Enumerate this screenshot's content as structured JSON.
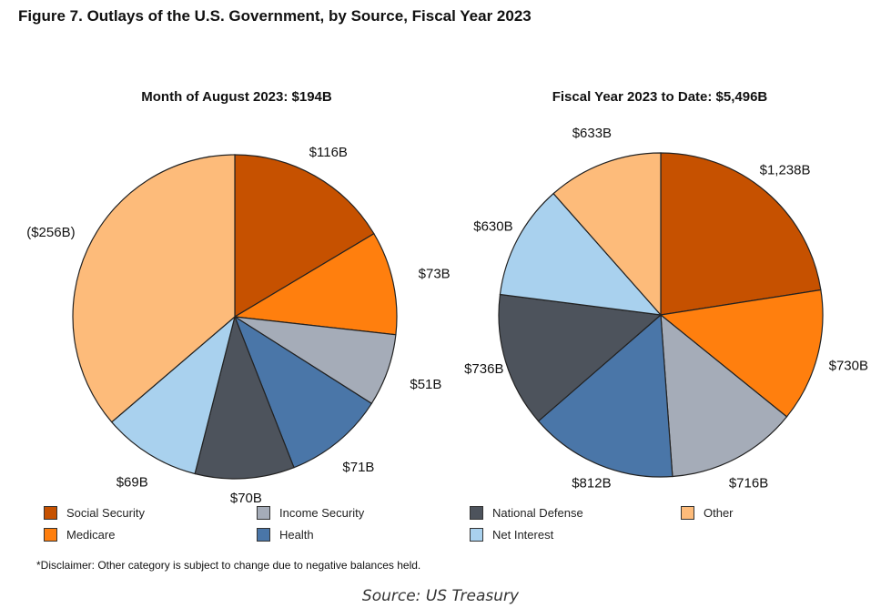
{
  "title": "Figure 7. Outlays of the U.S. Government, by Source, Fiscal Year 2023",
  "chart_data": [
    {
      "type": "pie",
      "title": "Month of August 2023: $194B",
      "slices": [
        {
          "category": "Social Security",
          "value": 116,
          "label": "$116B"
        },
        {
          "category": "Medicare",
          "value": 73,
          "label": "$73B"
        },
        {
          "category": "Income Security",
          "value": 51,
          "label": "$51B"
        },
        {
          "category": "Health",
          "value": 71,
          "label": "$71B"
        },
        {
          "category": "National Defense",
          "value": 70,
          "label": "$70B"
        },
        {
          "category": "Net Interest",
          "value": 69,
          "label": "$69B"
        },
        {
          "category": "Other",
          "value": -256,
          "label": "($256B)"
        }
      ]
    },
    {
      "type": "pie",
      "title": "Fiscal Year 2023 to Date: $5,496B",
      "slices": [
        {
          "category": "Social Security",
          "value": 1238,
          "label": "$1,238B"
        },
        {
          "category": "Medicare",
          "value": 730,
          "label": "$730B"
        },
        {
          "category": "Income Security",
          "value": 716,
          "label": "$716B"
        },
        {
          "category": "Health",
          "value": 812,
          "label": "$812B"
        },
        {
          "category": "National Defense",
          "value": 736,
          "label": "$736B"
        },
        {
          "category": "Net Interest",
          "value": 630,
          "label": "$630B"
        },
        {
          "category": "Other",
          "value": 633,
          "label": "$633B"
        }
      ]
    }
  ],
  "legend": [
    {
      "label": "Social Security",
      "color": "#C65100"
    },
    {
      "label": "Medicare",
      "color": "#FF7F0E"
    },
    {
      "label": "Income Security",
      "color": "#A5ACB8"
    },
    {
      "label": "Health",
      "color": "#4A76A8"
    },
    {
      "label": "National Defense",
      "color": "#4D535C"
    },
    {
      "label": "Net Interest",
      "color": "#A9D1EE"
    },
    {
      "label": "Other",
      "color": "#FDBB7A"
    }
  ],
  "disclaimer": "*Disclaimer: Other category is subject to change due to negative balances held.",
  "source": "Source: US Treasury"
}
